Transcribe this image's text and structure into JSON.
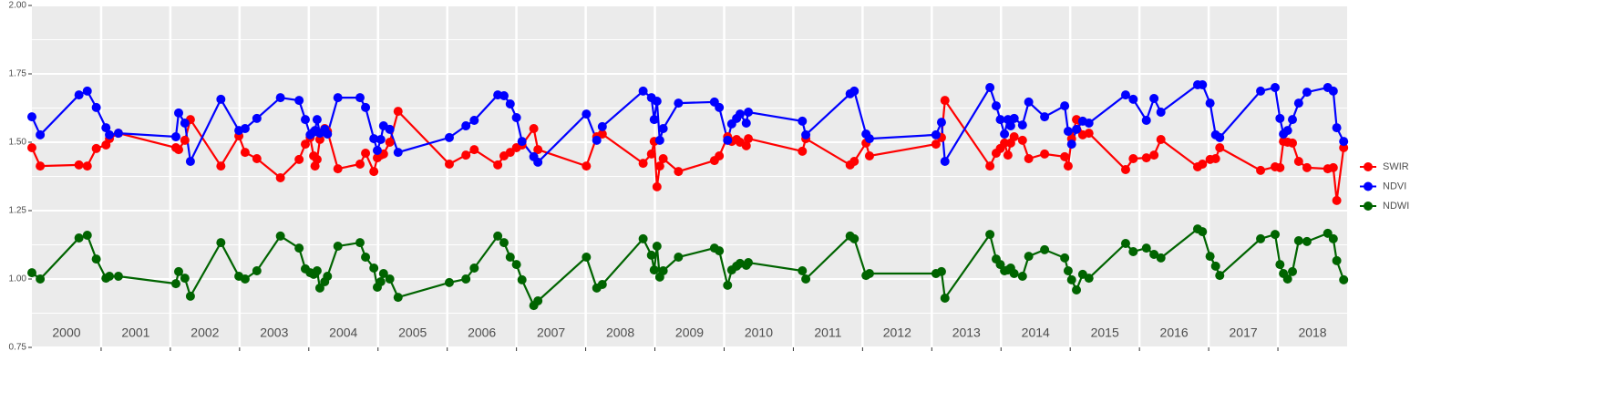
{
  "chart_data": {
    "type": "line",
    "x": [
      2000.0,
      2000.12,
      2000.68,
      2000.8,
      2000.93,
      2001.07,
      2001.12,
      2001.25,
      2002.08,
      2002.12,
      2002.21,
      2002.29,
      2002.73,
      2002.99,
      2003.08,
      2003.25,
      2003.59,
      2003.86,
      2003.95,
      2004.02,
      2004.07,
      2004.09,
      2004.12,
      2004.16,
      2004.23,
      2004.27,
      2004.42,
      2004.74,
      2004.82,
      2004.94,
      2004.99,
      2005.04,
      2005.08,
      2005.17,
      2005.29,
      2006.03,
      2006.27,
      2006.39,
      2006.73,
      2006.82,
      2006.91,
      2007.0,
      2007.08,
      2007.25,
      2007.31,
      2008.01,
      2008.16,
      2008.24,
      2008.83,
      2008.95,
      2008.99,
      2009.03,
      2009.07,
      2009.12,
      2009.34,
      2009.86,
      2009.93,
      2010.05,
      2010.11,
      2010.18,
      2010.23,
      2010.32,
      2010.35,
      2011.13,
      2011.18,
      2011.82,
      2011.88,
      2012.05,
      2012.1,
      2013.06,
      2013.14,
      2013.19,
      2013.84,
      2013.93,
      2013.99,
      2014.05,
      2014.1,
      2014.14,
      2014.19,
      2014.31,
      2014.4,
      2014.63,
      2014.92,
      2014.97,
      2015.02,
      2015.09,
      2015.18,
      2015.27,
      2015.8,
      2015.91,
      2016.1,
      2016.21,
      2016.31,
      2016.84,
      2016.91,
      2017.02,
      2017.1,
      2017.16,
      2017.75,
      2017.96,
      2018.03,
      2018.08,
      2018.14,
      2018.21,
      2018.3,
      2018.42,
      2018.72,
      2018.8,
      2018.85,
      2018.95
    ],
    "series": [
      {
        "name": "SWIR",
        "color": "#ff0000",
        "values": [
          1.48,
          1.413,
          1.417,
          1.413,
          1.477,
          1.49,
          1.513,
          1.533,
          1.48,
          1.473,
          1.507,
          1.583,
          1.413,
          1.523,
          1.463,
          1.44,
          1.37,
          1.437,
          1.493,
          1.517,
          1.45,
          1.413,
          1.437,
          1.51,
          1.55,
          1.54,
          1.403,
          1.42,
          1.46,
          1.393,
          1.443,
          1.453,
          1.457,
          1.5,
          1.613,
          1.42,
          1.453,
          1.473,
          1.417,
          1.45,
          1.463,
          1.48,
          1.49,
          1.55,
          1.473,
          1.413,
          1.52,
          1.53,
          1.423,
          1.457,
          1.503,
          1.337,
          1.413,
          1.44,
          1.393,
          1.433,
          1.45,
          1.52,
          1.503,
          1.51,
          1.5,
          1.487,
          1.513,
          1.467,
          1.513,
          1.417,
          1.43,
          1.497,
          1.45,
          1.493,
          1.517,
          1.653,
          1.413,
          1.46,
          1.477,
          1.497,
          1.453,
          1.497,
          1.52,
          1.507,
          1.44,
          1.457,
          1.447,
          1.413,
          1.513,
          1.583,
          1.527,
          1.533,
          1.4,
          1.44,
          1.443,
          1.453,
          1.51,
          1.41,
          1.42,
          1.437,
          1.44,
          1.48,
          1.397,
          1.41,
          1.407,
          1.503,
          1.5,
          1.497,
          1.43,
          1.407,
          1.403,
          1.407,
          1.287,
          1.48
        ]
      },
      {
        "name": "NDVI",
        "color": "#0000ff",
        "values": [
          1.593,
          1.527,
          1.673,
          1.687,
          1.627,
          1.553,
          1.527,
          1.533,
          1.52,
          1.607,
          1.57,
          1.43,
          1.657,
          1.543,
          1.55,
          1.587,
          1.663,
          1.653,
          1.583,
          1.527,
          1.537,
          1.543,
          1.583,
          1.533,
          1.547,
          1.53,
          1.663,
          1.663,
          1.627,
          1.513,
          1.47,
          1.51,
          1.56,
          1.547,
          1.463,
          1.517,
          1.56,
          1.58,
          1.673,
          1.67,
          1.64,
          1.59,
          1.503,
          1.447,
          1.427,
          1.603,
          1.507,
          1.557,
          1.687,
          1.663,
          1.583,
          1.65,
          1.507,
          1.55,
          1.643,
          1.647,
          1.627,
          1.507,
          1.567,
          1.587,
          1.603,
          1.57,
          1.61,
          1.577,
          1.527,
          1.677,
          1.687,
          1.53,
          1.513,
          1.527,
          1.573,
          1.43,
          1.7,
          1.633,
          1.583,
          1.53,
          1.583,
          1.56,
          1.587,
          1.563,
          1.647,
          1.593,
          1.633,
          1.54,
          1.493,
          1.547,
          1.577,
          1.57,
          1.673,
          1.657,
          1.58,
          1.66,
          1.61,
          1.71,
          1.71,
          1.643,
          1.527,
          1.517,
          1.687,
          1.7,
          1.587,
          1.53,
          1.543,
          1.583,
          1.643,
          1.683,
          1.7,
          1.687,
          1.553,
          1.503
        ]
      },
      {
        "name": "NDWI",
        "color": "#006400",
        "values": [
          1.023,
          1.0,
          1.15,
          1.16,
          1.073,
          1.003,
          1.01,
          1.01,
          0.983,
          1.027,
          1.003,
          0.937,
          1.133,
          1.01,
          1.0,
          1.03,
          1.157,
          1.113,
          1.037,
          1.023,
          1.017,
          1.02,
          1.03,
          0.967,
          0.99,
          1.01,
          1.12,
          1.133,
          1.08,
          1.04,
          0.97,
          0.99,
          1.02,
          1.0,
          0.933,
          0.987,
          1.0,
          1.04,
          1.157,
          1.133,
          1.08,
          1.053,
          0.997,
          0.903,
          0.92,
          1.08,
          0.967,
          0.98,
          1.147,
          1.087,
          1.033,
          1.12,
          1.007,
          1.03,
          1.08,
          1.113,
          1.103,
          0.977,
          1.033,
          1.047,
          1.057,
          1.05,
          1.06,
          1.03,
          1.0,
          1.157,
          1.147,
          1.013,
          1.02,
          1.02,
          1.027,
          0.93,
          1.163,
          1.073,
          1.053,
          1.03,
          1.033,
          1.04,
          1.02,
          1.01,
          1.083,
          1.107,
          1.077,
          1.03,
          0.997,
          0.96,
          1.017,
          1.003,
          1.13,
          1.1,
          1.113,
          1.09,
          1.077,
          1.183,
          1.173,
          1.083,
          1.047,
          1.013,
          1.147,
          1.163,
          1.053,
          1.02,
          1.0,
          1.027,
          1.14,
          1.137,
          1.167,
          1.147,
          1.067,
          0.997
        ]
      }
    ],
    "year_labels": [
      "2000",
      "2001",
      "2002",
      "2003",
      "2004",
      "2005",
      "2006",
      "2007",
      "2008",
      "2009",
      "2010",
      "2011",
      "2012",
      "2013",
      "2014",
      "2015",
      "2016",
      "2017",
      "2018"
    ],
    "xlim": [
      2000,
      2019
    ],
    "xticks": [
      2001,
      2002,
      2003,
      2004,
      2005,
      2006,
      2007,
      2008,
      2009,
      2010,
      2011,
      2012,
      2013,
      2014,
      2015,
      2016,
      2017,
      2018
    ],
    "ylim": [
      0.75,
      2.0
    ],
    "yticks": [
      {
        "value": 0.75,
        "label": "0.75"
      },
      {
        "value": 1.0,
        "label": "1.00"
      },
      {
        "value": 1.25,
        "label": "1.25"
      },
      {
        "value": 1.5,
        "label": "1.50"
      },
      {
        "value": 1.75,
        "label": "1.75"
      },
      {
        "value": 2.0,
        "label": "2.00"
      }
    ],
    "grid": true,
    "legend": "right"
  }
}
